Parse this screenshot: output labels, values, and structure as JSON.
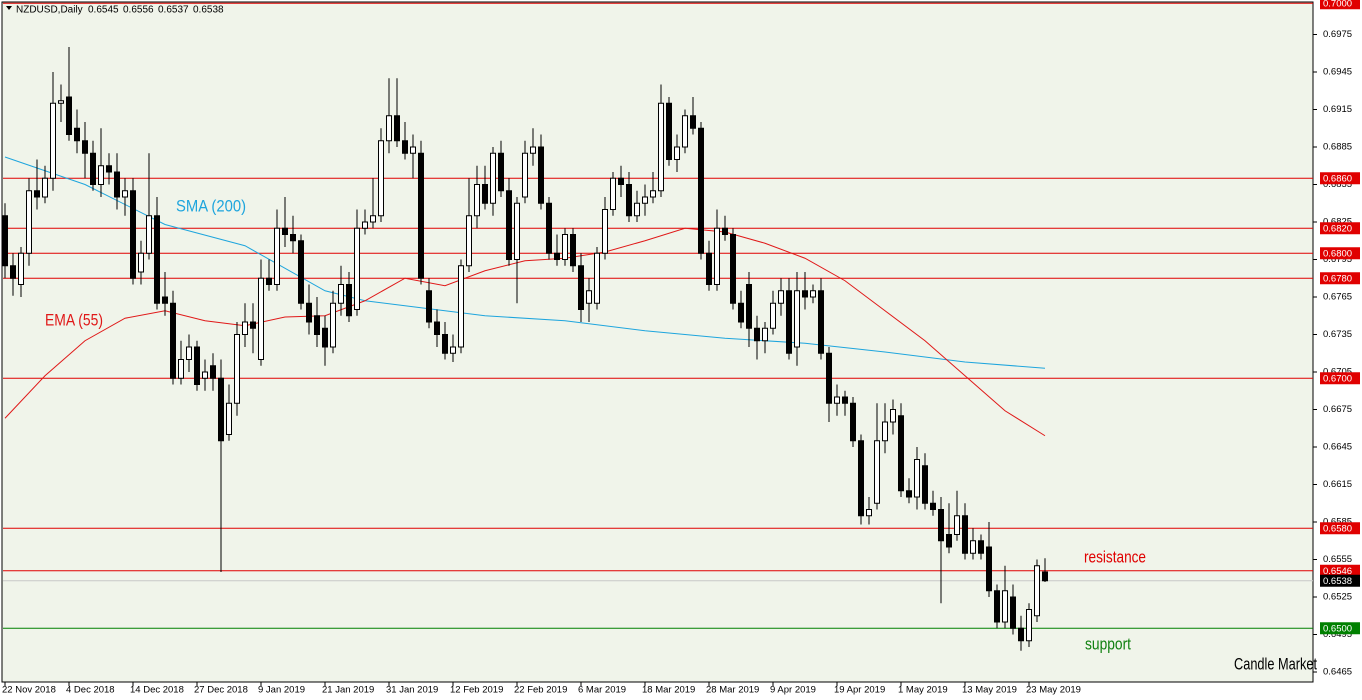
{
  "chart_data": {
    "type": "candlestick",
    "title": "NZDUSD,Daily",
    "ylim": [
      0.6457,
      0.7001
    ],
    "yticks": [
      0.6975,
      0.6945,
      0.6915,
      0.6885,
      0.6855,
      0.6825,
      0.6795,
      0.6765,
      0.6735,
      0.6705,
      0.6675,
      0.6645,
      0.6615,
      0.6585,
      0.6555,
      0.6525,
      0.6495,
      0.6465
    ],
    "bull_color": "#ffffff",
    "bear_color": "#000000",
    "categories": [
      "22 Nov 2018",
      null,
      null,
      null,
      null,
      null,
      null,
      null,
      "4 Dec 2018",
      null,
      null,
      null,
      null,
      null,
      null,
      null,
      "14 Dec 2018",
      null,
      null,
      null,
      null,
      null,
      null,
      null,
      "27 Dec 2018",
      null,
      null,
      null,
      null,
      null,
      null,
      null,
      "9 Jan 2019",
      null,
      null,
      null,
      null,
      null,
      null,
      null,
      "21 Jan 2019",
      null,
      null,
      null,
      null,
      null,
      null,
      null,
      "31 Jan 2019",
      null,
      null,
      null,
      null,
      null,
      null,
      null,
      "12 Feb 2019",
      null,
      null,
      null,
      null,
      null,
      null,
      null,
      "22 Feb 2019",
      null,
      null,
      null,
      null,
      null,
      null,
      null,
      "6 Mar 2019",
      null,
      null,
      null,
      null,
      null,
      null,
      null,
      "18 Mar 2019",
      null,
      null,
      null,
      null,
      null,
      null,
      null,
      "28 Mar 2019",
      null,
      null,
      null,
      null,
      null,
      null,
      null,
      "9 Apr 2019",
      null,
      null,
      null,
      null,
      null,
      null,
      null,
      "19 Apr 2019",
      null,
      null,
      null,
      null,
      null,
      null,
      null,
      "1 May 2019",
      null,
      null,
      null,
      null,
      null,
      null,
      null,
      "13 May 2019",
      null,
      null,
      null,
      null,
      null,
      null,
      null,
      "23 May 2019",
      null,
      null
    ],
    "candles": [
      [
        0.683,
        0.684,
        0.678,
        0.679
      ],
      [
        0.679,
        0.68,
        0.6766,
        0.678
      ],
      [
        0.6775,
        0.6805,
        0.6765,
        0.68
      ],
      [
        0.68,
        0.686,
        0.679,
        0.685
      ],
      [
        0.685,
        0.6875,
        0.6835,
        0.6845
      ],
      [
        0.6845,
        0.687,
        0.684,
        0.686
      ],
      [
        0.686,
        0.6945,
        0.685,
        0.692
      ],
      [
        0.692,
        0.6935,
        0.6905,
        0.6922
      ],
      [
        0.6925,
        0.6965,
        0.689,
        0.6895
      ],
      [
        0.69,
        0.6915,
        0.688,
        0.689
      ],
      [
        0.689,
        0.6905,
        0.686,
        0.688
      ],
      [
        0.688,
        0.689,
        0.685,
        0.6855
      ],
      [
        0.6855,
        0.69,
        0.6845,
        0.687
      ],
      [
        0.687,
        0.688,
        0.6855,
        0.6865
      ],
      [
        0.6865,
        0.688,
        0.6835,
        0.6845
      ],
      [
        0.6845,
        0.686,
        0.683,
        0.685
      ],
      [
        0.685,
        0.686,
        0.6775,
        0.678
      ],
      [
        0.6785,
        0.681,
        0.6775,
        0.68
      ],
      [
        0.68,
        0.688,
        0.6795,
        0.683
      ],
      [
        0.683,
        0.6845,
        0.6755,
        0.676
      ],
      [
        0.6765,
        0.6785,
        0.675,
        0.676
      ],
      [
        0.676,
        0.677,
        0.6695,
        0.67
      ],
      [
        0.67,
        0.673,
        0.6695,
        0.6715
      ],
      [
        0.6715,
        0.6735,
        0.6705,
        0.6725
      ],
      [
        0.6725,
        0.673,
        0.669,
        0.6695
      ],
      [
        0.67,
        0.6715,
        0.669,
        0.6705
      ],
      [
        0.671,
        0.672,
        0.669,
        0.67
      ],
      [
        0.67,
        0.6715,
        0.6545,
        0.665
      ],
      [
        0.6655,
        0.6695,
        0.665,
        0.668
      ],
      [
        0.668,
        0.6745,
        0.667,
        0.6735
      ],
      [
        0.6735,
        0.676,
        0.6725,
        0.6745
      ],
      [
        0.6745,
        0.676,
        0.672,
        0.674
      ],
      [
        0.6715,
        0.6795,
        0.671,
        0.678
      ],
      [
        0.678,
        0.6795,
        0.677,
        0.6775
      ],
      [
        0.6775,
        0.6835,
        0.677,
        0.682
      ],
      [
        0.682,
        0.6845,
        0.6805,
        0.6815
      ],
      [
        0.6815,
        0.683,
        0.68,
        0.681
      ],
      [
        0.681,
        0.6815,
        0.6755,
        0.676
      ],
      [
        0.676,
        0.6775,
        0.6735,
        0.6745
      ],
      [
        0.675,
        0.6765,
        0.6725,
        0.6735
      ],
      [
        0.674,
        0.675,
        0.671,
        0.6725
      ],
      [
        0.6725,
        0.677,
        0.672,
        0.676
      ],
      [
        0.676,
        0.679,
        0.675,
        0.6775
      ],
      [
        0.6775,
        0.6785,
        0.6745,
        0.675
      ],
      [
        0.6755,
        0.6835,
        0.675,
        0.682
      ],
      [
        0.682,
        0.6835,
        0.6815,
        0.6825
      ],
      [
        0.6825,
        0.686,
        0.682,
        0.683
      ],
      [
        0.683,
        0.69,
        0.6825,
        0.689
      ],
      [
        0.689,
        0.694,
        0.688,
        0.691
      ],
      [
        0.691,
        0.694,
        0.6885,
        0.689
      ],
      [
        0.689,
        0.6905,
        0.6875,
        0.688
      ],
      [
        0.688,
        0.6895,
        0.686,
        0.6885
      ],
      [
        0.688,
        0.689,
        0.6775,
        0.678
      ],
      [
        0.677,
        0.678,
        0.674,
        0.6745
      ],
      [
        0.6745,
        0.6755,
        0.6725,
        0.6735
      ],
      [
        0.6735,
        0.6745,
        0.6715,
        0.672
      ],
      [
        0.672,
        0.6735,
        0.6713,
        0.6725
      ],
      [
        0.6725,
        0.6795,
        0.672,
        0.679
      ],
      [
        0.679,
        0.686,
        0.6785,
        0.683
      ],
      [
        0.683,
        0.687,
        0.682,
        0.6855
      ],
      [
        0.6855,
        0.687,
        0.6835,
        0.684
      ],
      [
        0.684,
        0.6885,
        0.683,
        0.688
      ],
      [
        0.688,
        0.689,
        0.6845,
        0.685
      ],
      [
        0.685,
        0.686,
        0.679,
        0.6795
      ],
      [
        0.6795,
        0.6845,
        0.676,
        0.684
      ],
      [
        0.6845,
        0.689,
        0.684,
        0.688
      ],
      [
        0.688,
        0.69,
        0.687,
        0.6885
      ],
      [
        0.6885,
        0.6895,
        0.6835,
        0.684
      ],
      [
        0.684,
        0.6845,
        0.6795,
        0.68
      ],
      [
        0.68,
        0.6815,
        0.679,
        0.6795
      ],
      [
        0.6795,
        0.682,
        0.679,
        0.6815
      ],
      [
        0.6815,
        0.682,
        0.6785,
        0.679
      ],
      [
        0.679,
        0.68,
        0.6745,
        0.6755
      ],
      [
        0.676,
        0.678,
        0.6745,
        0.677
      ],
      [
        0.676,
        0.6805,
        0.6755,
        0.68
      ],
      [
        0.68,
        0.6845,
        0.6795,
        0.6835
      ],
      [
        0.6835,
        0.6865,
        0.683,
        0.686
      ],
      [
        0.686,
        0.687,
        0.6845,
        0.6855
      ],
      [
        0.6855,
        0.6865,
        0.6825,
        0.683
      ],
      [
        0.683,
        0.685,
        0.6825,
        0.684
      ],
      [
        0.684,
        0.6855,
        0.683,
        0.6845
      ],
      [
        0.6845,
        0.6865,
        0.684,
        0.685
      ],
      [
        0.685,
        0.6935,
        0.6845,
        0.692
      ],
      [
        0.692,
        0.6925,
        0.687,
        0.6875
      ],
      [
        0.6875,
        0.6895,
        0.6865,
        0.6885
      ],
      [
        0.6885,
        0.6915,
        0.688,
        0.691
      ],
      [
        0.691,
        0.6925,
        0.6895,
        0.69
      ],
      [
        0.69,
        0.6905,
        0.6795,
        0.68
      ],
      [
        0.68,
        0.681,
        0.677,
        0.6775
      ],
      [
        0.6775,
        0.6835,
        0.677,
        0.682
      ],
      [
        0.682,
        0.683,
        0.681,
        0.6815
      ],
      [
        0.6815,
        0.682,
        0.6755,
        0.676
      ],
      [
        0.676,
        0.677,
        0.674,
        0.6745
      ],
      [
        0.6775,
        0.6785,
        0.6725,
        0.674
      ],
      [
        0.674,
        0.675,
        0.6715,
        0.673
      ],
      [
        0.673,
        0.6745,
        0.672,
        0.674
      ],
      [
        0.674,
        0.677,
        0.6735,
        0.676
      ],
      [
        0.676,
        0.678,
        0.675,
        0.677
      ],
      [
        0.677,
        0.678,
        0.6715,
        0.672
      ],
      [
        0.6725,
        0.6785,
        0.671,
        0.677
      ],
      [
        0.677,
        0.6785,
        0.6755,
        0.6765
      ],
      [
        0.6765,
        0.6775,
        0.676,
        0.677
      ],
      [
        0.677,
        0.678,
        0.6715,
        0.672
      ],
      [
        0.672,
        0.6725,
        0.6665,
        0.668
      ],
      [
        0.668,
        0.6695,
        0.667,
        0.6685
      ],
      [
        0.6685,
        0.669,
        0.667,
        0.668
      ],
      [
        0.668,
        0.6685,
        0.6645,
        0.665
      ],
      [
        0.665,
        0.6655,
        0.6583,
        0.659
      ],
      [
        0.659,
        0.6605,
        0.6583,
        0.6595
      ],
      [
        0.66,
        0.668,
        0.6595,
        0.665
      ],
      [
        0.665,
        0.668,
        0.664,
        0.6665
      ],
      [
        0.6665,
        0.6683,
        0.6655,
        0.6675
      ],
      [
        0.667,
        0.668,
        0.6605,
        0.661
      ],
      [
        0.661,
        0.662,
        0.66,
        0.6605
      ],
      [
        0.6605,
        0.6645,
        0.6595,
        0.6635
      ],
      [
        0.663,
        0.664,
        0.6595,
        0.66
      ],
      [
        0.66,
        0.661,
        0.659,
        0.6595
      ],
      [
        0.6595,
        0.6605,
        0.652,
        0.657
      ],
      [
        0.6575,
        0.66,
        0.656,
        0.6565
      ],
      [
        0.6575,
        0.661,
        0.657,
        0.659
      ],
      [
        0.659,
        0.66,
        0.6555,
        0.656
      ],
      [
        0.656,
        0.658,
        0.6555,
        0.657
      ],
      [
        0.657,
        0.6575,
        0.6555,
        0.656
      ],
      [
        0.6565,
        0.6585,
        0.6525,
        0.653
      ],
      [
        0.653,
        0.6535,
        0.65,
        0.6505
      ],
      [
        0.6505,
        0.655,
        0.65,
        0.653
      ],
      [
        0.6525,
        0.6535,
        0.6495,
        0.65
      ],
      [
        0.65,
        0.651,
        0.6482,
        0.649
      ],
      [
        0.649,
        0.652,
        0.6485,
        0.6515
      ],
      [
        0.651,
        0.6555,
        0.6505,
        0.655
      ],
      [
        0.6545,
        0.6556,
        0.6537,
        0.6538
      ]
    ],
    "series": [
      {
        "name": "SMA (200)",
        "color": "#1ea5dd",
        "x": [
          0,
          10,
          20,
          30,
          40,
          45,
          50,
          60,
          70,
          80,
          90,
          100,
          110,
          120,
          130
        ],
        "values": [
          0.6877,
          0.6855,
          0.6823,
          0.6806,
          0.677,
          0.6762,
          0.6758,
          0.675,
          0.6746,
          0.6738,
          0.6732,
          0.6728,
          0.6721,
          0.6713,
          0.6708
        ]
      },
      {
        "name": "EMA (55)",
        "color": "#e01818",
        "x": [
          0,
          5,
          10,
          15,
          20,
          25,
          30,
          35,
          40,
          45,
          50,
          55,
          60,
          65,
          70,
          75,
          80,
          85,
          90,
          95,
          100,
          105,
          110,
          115,
          120,
          125,
          130
        ],
        "values": [
          0.6668,
          0.6702,
          0.673,
          0.6748,
          0.6754,
          0.6746,
          0.6742,
          0.6749,
          0.675,
          0.6762,
          0.678,
          0.6774,
          0.6786,
          0.6794,
          0.6796,
          0.6801,
          0.681,
          0.682,
          0.6817,
          0.6808,
          0.6796,
          0.6778,
          0.6754,
          0.673,
          0.6702,
          0.6674,
          0.6654
        ]
      }
    ],
    "levels": [
      {
        "value": 0.7,
        "label": "0.7000",
        "color": "#e00000"
      },
      {
        "value": 0.686,
        "label": "0.6860",
        "color": "#e00000"
      },
      {
        "value": 0.682,
        "label": "0.6820",
        "color": "#e00000"
      },
      {
        "value": 0.68,
        "label": "0.6800",
        "color": "#e00000"
      },
      {
        "value": 0.678,
        "label": "0.6780",
        "color": "#e00000"
      },
      {
        "value": 0.67,
        "label": "0.6700",
        "color": "#e00000"
      },
      {
        "value": 0.658,
        "label": "0.6580",
        "color": "#e00000"
      },
      {
        "value": 0.6546,
        "label": "0.6546",
        "color": "#e00000"
      },
      {
        "value": 0.6538,
        "label": "0.6538",
        "color": "#000000",
        "line_color": "#c8c8c8"
      },
      {
        "value": 0.65,
        "label": "0.6500",
        "color": "#008000"
      }
    ],
    "annotations": [
      {
        "text": "resistance",
        "color": "#e00000"
      },
      {
        "text": "support",
        "color": "#108010"
      },
      {
        "text": "Candle Market",
        "color": "#000000"
      }
    ]
  }
}
